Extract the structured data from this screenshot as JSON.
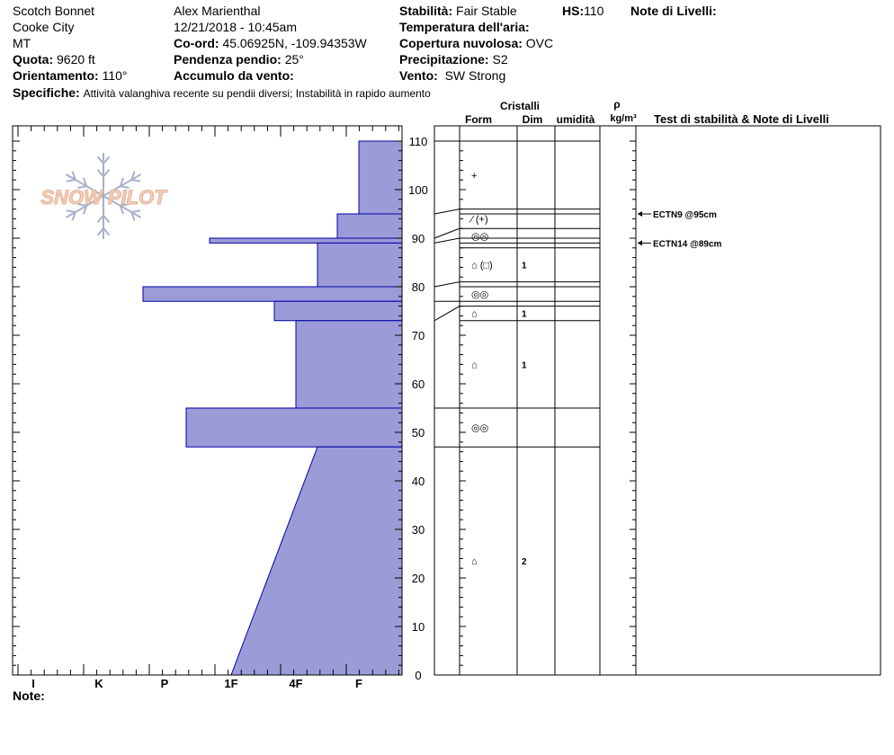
{
  "header": {
    "location": "Scotch Bonnet",
    "area": "Cooke City",
    "state": "MT",
    "elevation_label": "Quota:",
    "elevation_value": "9620 ft",
    "aspect_label": "Orientamento:",
    "aspect_value": "110°",
    "observer": "Alex Marienthal",
    "datetime": "12/21/2018 - 10:45am",
    "coord_label": "Co-ord:",
    "coord_value": "45.06925N, -109.94353W",
    "slope_label": "Pendenza pendio:",
    "slope_value": "25°",
    "wind_loading_label": "Accumulo da vento:",
    "stability_label": "Stabilità:",
    "stability_value": "Fair Stable",
    "hs_label": "HS:",
    "hs_value": "110",
    "air_temp_label": "Temperatura dell'aria:",
    "sky_label": "Copertura nuvolosa:",
    "sky_value": "OVC",
    "precip_label": "Precipitazione:",
    "precip_value": "S2",
    "wind_label": "Vento:",
    "wind_value": "SW Strong",
    "layer_notes_label": "Note di Livelli:",
    "specifics_label": "Specifiche:",
    "specifics_value": "Attività valanghiva recente su pendii diversi; Instabilità in rapido aumento",
    "notes_label": "Note:"
  },
  "columns": {
    "crystals": "Cristalli",
    "form": "Form",
    "size": "Dim",
    "moisture": "umidità",
    "rho": "ρ",
    "density_unit": "kg/m³",
    "stability_notes": "Test di stabilità & Note di Livelli"
  },
  "logo_text": "SNOW PILOT",
  "colors": {
    "fill": "#9b9bd7",
    "outline": "#0000aa"
  },
  "chart_data": {
    "type": "snow-profile",
    "y_axis": {
      "ticks": [
        0,
        10,
        20,
        30,
        40,
        50,
        60,
        70,
        80,
        90,
        100,
        110
      ],
      "range": [
        0,
        110
      ],
      "unit": "cm"
    },
    "x_axis": {
      "labels": [
        "I",
        "K",
        "P",
        "1F",
        "4F",
        "F"
      ]
    },
    "hardness_layers": [
      {
        "top": 110,
        "bottom": 95,
        "hardness": "F"
      },
      {
        "top": 95,
        "bottom": 90,
        "hardness": "F+"
      },
      {
        "top": 90,
        "bottom": 89,
        "hardness": "1F+"
      },
      {
        "top": 89,
        "bottom": 80,
        "hardness": "4F-"
      },
      {
        "top": 80,
        "bottom": 77,
        "hardness": "P+"
      },
      {
        "top": 77,
        "bottom": 73,
        "hardness": "4F+"
      },
      {
        "top": 73,
        "bottom": 55,
        "hardness": "4F"
      },
      {
        "top": 55,
        "bottom": 47,
        "hardness": "P-"
      },
      {
        "top": 47,
        "bottom": 0,
        "hardness": "4F-",
        "hardness_bottom": "1F"
      }
    ],
    "layer_boundaries": [
      110,
      96,
      95,
      92,
      90,
      89,
      88,
      81,
      80,
      77,
      76,
      73,
      55,
      47
    ],
    "crystal_layers": [
      {
        "height": 103,
        "form": "+",
        "size": ""
      },
      {
        "height": 94,
        "form": "⁄ (+)",
        "size": ""
      },
      {
        "height": 90.5,
        "form": "◎◎",
        "size": ""
      },
      {
        "height": 84.5,
        "form": "⌂ (□)",
        "size": "1"
      },
      {
        "height": 78.5,
        "form": "◎◎",
        "size": ""
      },
      {
        "height": 74.5,
        "form": "⌂",
        "size": "1"
      },
      {
        "height": 64,
        "form": "⌂",
        "size": "1"
      },
      {
        "height": 51,
        "form": "◎◎",
        "size": ""
      },
      {
        "height": 23.5,
        "form": "⌂",
        "size": "2"
      }
    ],
    "stability_tests": [
      {
        "height": 95,
        "label": "ECTN9 @95cm"
      },
      {
        "height": 89,
        "label": "ECTN14 @89cm"
      }
    ]
  }
}
